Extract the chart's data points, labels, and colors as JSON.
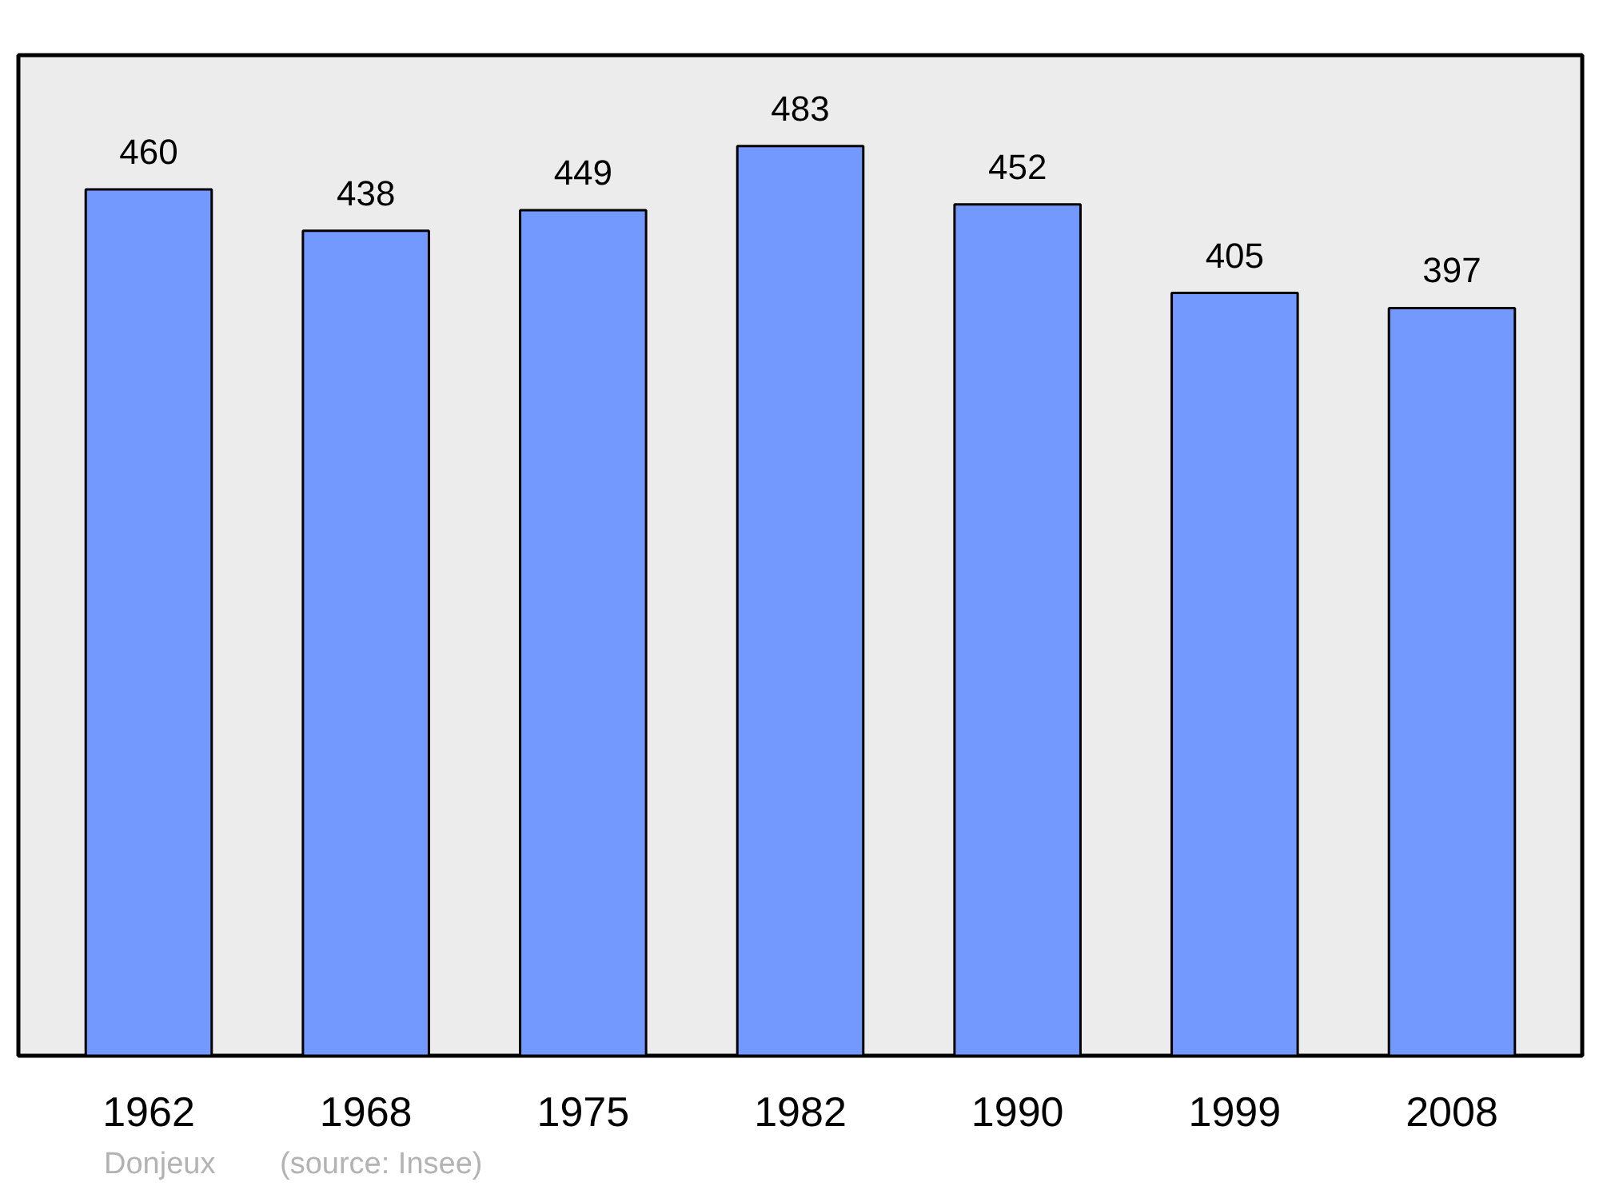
{
  "chart_data": {
    "type": "bar",
    "categories": [
      "1962",
      "1968",
      "1975",
      "1982",
      "1990",
      "1999",
      "2008"
    ],
    "values": [
      460,
      438,
      449,
      483,
      452,
      405,
      397
    ],
    "color": "#7399ff",
    "data_labels": true,
    "grid": false,
    "annotations": [
      "Donjeux",
      "(source: Insee)"
    ]
  }
}
